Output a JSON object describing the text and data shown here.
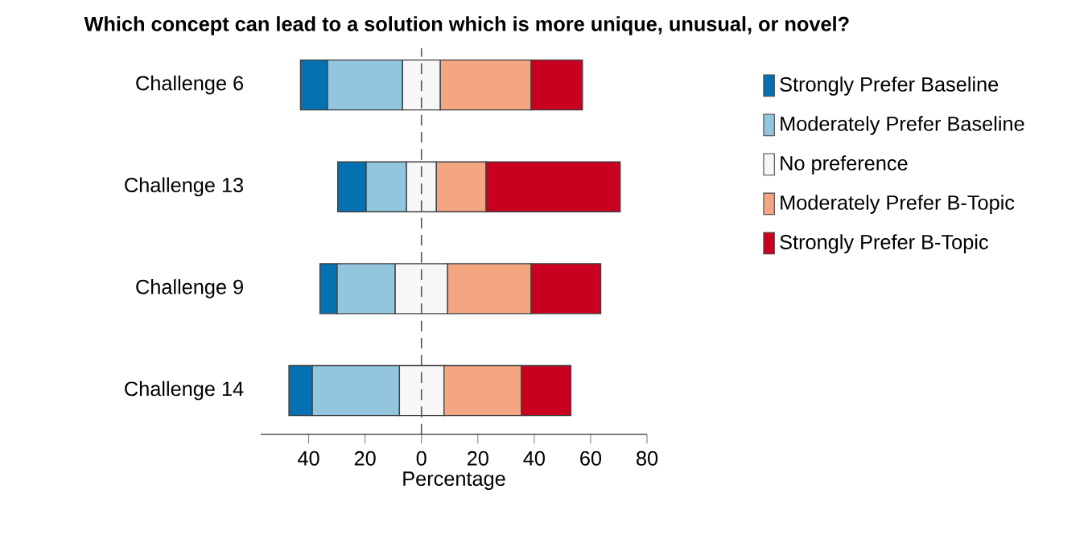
{
  "chart_data": {
    "type": "bar",
    "orientation": "horizontal",
    "title": "Which concept can lead to a solution which is more unique, unusual, or novel?",
    "xlabel": "Percentage",
    "categories": [
      "Challenge 6",
      "Challenge 13",
      "Challenge 9",
      "Challenge 14"
    ],
    "series": [
      {
        "name": "Strongly Prefer Baseline",
        "color": "#0571b0",
        "base": [
          -42.9,
          -29.7,
          -36.0,
          -47.0
        ],
        "values": [
          9.6,
          10.1,
          6.1,
          8.3
        ]
      },
      {
        "name": "Moderately Prefer Baseline",
        "color": "#92c5de",
        "base": [
          -33.3,
          -19.6,
          -29.9,
          -38.7
        ],
        "values": [
          26.6,
          14.3,
          20.6,
          30.9
        ]
      },
      {
        "name": "No preference",
        "color": "#f7f7f7",
        "base": [
          -6.7,
          -5.3,
          -9.3,
          -7.8
        ],
        "values": [
          13.4,
          10.6,
          18.6,
          15.8
        ]
      },
      {
        "name": "Moderately Prefer B-Topic",
        "color": "#f4a582",
        "base": [
          6.7,
          5.3,
          9.3,
          8.0
        ],
        "values": [
          32.2,
          17.6,
          29.6,
          27.4
        ]
      },
      {
        "name": "Strongly Prefer B-Topic",
        "color": "#ca0020",
        "base": [
          38.9,
          22.9,
          38.9,
          35.4
        ],
        "values": [
          18.2,
          47.6,
          24.7,
          17.6
        ]
      }
    ],
    "xlim": [
      -57,
      80
    ],
    "xticks": [
      {
        "value": -40,
        "label": "40"
      },
      {
        "value": -20,
        "label": "20"
      },
      0,
      20,
      40,
      60,
      80
    ],
    "ref_lines": [
      {
        "axis": "x",
        "value": 0,
        "line_style": "dashed",
        "color": "#555555"
      }
    ],
    "legend": "right"
  }
}
